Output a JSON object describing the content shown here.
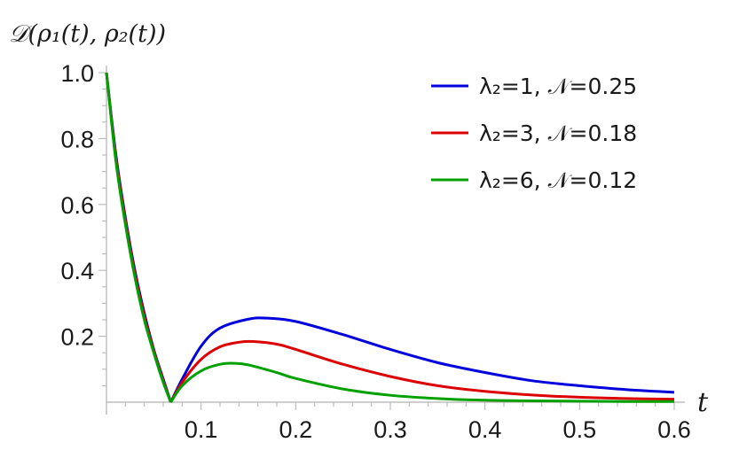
{
  "chart_data": {
    "type": "line",
    "ylabel": "𝒟(ρ₁(t), ρ₂(t))",
    "xlabel": "t",
    "xlim": [
      0,
      0.6
    ],
    "ylim": [
      0,
      1.0
    ],
    "x_ticks": [
      0.1,
      0.2,
      0.3,
      0.4,
      0.5,
      0.6
    ],
    "y_ticks": [
      0.2,
      0.4,
      0.6,
      0.8,
      1.0
    ],
    "x_tick_labels": [
      "0.1",
      "0.2",
      "0.3",
      "0.4",
      "0.5",
      "0.6"
    ],
    "y_tick_labels": [
      "0.2",
      "0.4",
      "0.6",
      "0.8",
      "1.0"
    ],
    "grid": false,
    "legend_position": "top-right",
    "series": [
      {
        "name": "λ₂=1, 𝒩=0.25",
        "color": "#0000dd",
        "x": [
          0,
          0.01,
          0.02,
          0.03,
          0.04,
          0.05,
          0.06,
          0.068,
          0.08,
          0.1,
          0.12,
          0.15,
          0.17,
          0.2,
          0.25,
          0.3,
          0.35,
          0.4,
          0.45,
          0.5,
          0.55,
          0.6
        ],
        "y": [
          1.0,
          0.75,
          0.56,
          0.4,
          0.27,
          0.16,
          0.07,
          0.0,
          0.07,
          0.17,
          0.225,
          0.252,
          0.255,
          0.245,
          0.205,
          0.16,
          0.12,
          0.09,
          0.065,
          0.05,
          0.038,
          0.03
        ]
      },
      {
        "name": "λ₂=3, 𝒩=0.18",
        "color": "#dd0000",
        "x": [
          0,
          0.01,
          0.02,
          0.03,
          0.04,
          0.05,
          0.06,
          0.068,
          0.08,
          0.1,
          0.12,
          0.14,
          0.155,
          0.18,
          0.2,
          0.25,
          0.3,
          0.35,
          0.4,
          0.45,
          0.5,
          0.55,
          0.6
        ],
        "y": [
          1.0,
          0.74,
          0.55,
          0.39,
          0.26,
          0.155,
          0.065,
          0.0,
          0.06,
          0.13,
          0.168,
          0.182,
          0.184,
          0.176,
          0.16,
          0.115,
          0.078,
          0.05,
          0.033,
          0.022,
          0.015,
          0.011,
          0.009
        ]
      },
      {
        "name": "λ₂=6, 𝒩=0.12",
        "color": "#00a000",
        "x": [
          0,
          0.01,
          0.02,
          0.03,
          0.04,
          0.05,
          0.06,
          0.068,
          0.08,
          0.1,
          0.12,
          0.135,
          0.15,
          0.18,
          0.2,
          0.25,
          0.3,
          0.35,
          0.4,
          0.45,
          0.5,
          0.55,
          0.6
        ],
        "y": [
          1.0,
          0.73,
          0.54,
          0.38,
          0.25,
          0.15,
          0.06,
          0.0,
          0.05,
          0.095,
          0.115,
          0.118,
          0.113,
          0.09,
          0.072,
          0.04,
          0.021,
          0.011,
          0.006,
          0.004,
          0.003,
          0.002,
          0.002
        ]
      }
    ]
  }
}
